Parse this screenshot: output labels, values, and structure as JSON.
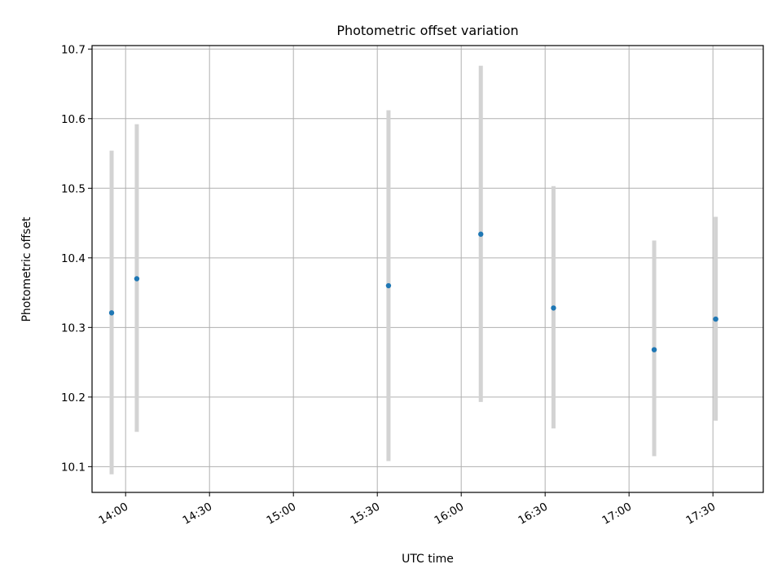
{
  "chart_data": {
    "type": "scatter",
    "title": "Photometric offset variation",
    "xlabel": "UTC time",
    "ylabel": "Photometric offset",
    "x_unit": "UTC time (HH:MM)",
    "xlim": [
      "13:48",
      "17:48"
    ],
    "ylim": [
      10.063,
      10.705
    ],
    "xticks": [
      "14:00",
      "14:30",
      "15:00",
      "15:30",
      "16:00",
      "16:30",
      "17:00",
      "17:30"
    ],
    "yticks": [
      "10.1",
      "10.2",
      "10.3",
      "10.4",
      "10.5",
      "10.6",
      "10.7"
    ],
    "grid": true,
    "points": [
      {
        "x": "13:55",
        "y": 10.321,
        "y_low": 10.089,
        "y_high": 10.554
      },
      {
        "x": "14:04",
        "y": 10.37,
        "y_low": 10.15,
        "y_high": 10.592
      },
      {
        "x": "15:34",
        "y": 10.36,
        "y_low": 10.108,
        "y_high": 10.612
      },
      {
        "x": "16:07",
        "y": 10.434,
        "y_low": 10.193,
        "y_high": 10.676
      },
      {
        "x": "16:33",
        "y": 10.328,
        "y_low": 10.155,
        "y_high": 10.503
      },
      {
        "x": "17:09",
        "y": 10.268,
        "y_low": 10.115,
        "y_high": 10.425
      },
      {
        "x": "17:31",
        "y": 10.312,
        "y_low": 10.166,
        "y_high": 10.459
      }
    ],
    "colors": {
      "marker": "#1f77b4",
      "errorbar": "#d3d3d3",
      "grid": "#b0b0b0"
    }
  }
}
